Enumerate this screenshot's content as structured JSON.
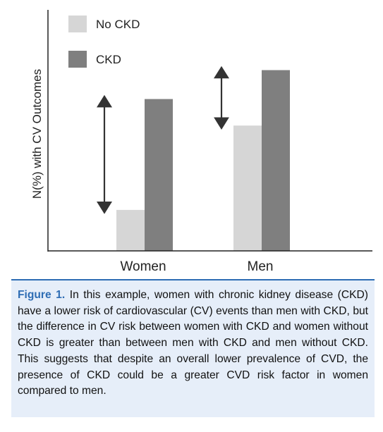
{
  "chart_data": {
    "type": "bar",
    "title": "",
    "xlabel": "",
    "ylabel": "N(%) with CV Outcomes",
    "categories": [
      "Women",
      "Men"
    ],
    "series": [
      {
        "name": "No CKD",
        "values": [
          17,
          52
        ],
        "color": "#d6d6d6"
      },
      {
        "name": "CKD",
        "values": [
          63,
          75
        ],
        "color": "#7f7f7f"
      }
    ],
    "ylim": [
      0,
      100
    ],
    "grid": false,
    "legend_position": "top-left",
    "annotations": "double-headed arrows marking the difference between No CKD and CKD for each group"
  },
  "caption": {
    "label": "Figure 1.",
    "text": "In this example, women with chronic kidney disease (CKD) have a lower risk of cardiovascular (CV) events than men with CKD, but the difference in CV risk between women with CKD and women without CKD is greater than between men with CKD and men without CKD. This suggests that despite an overall lower prevalence of CVD, the presence of CKD could be a greater CVD risk factor in women compared to men."
  }
}
